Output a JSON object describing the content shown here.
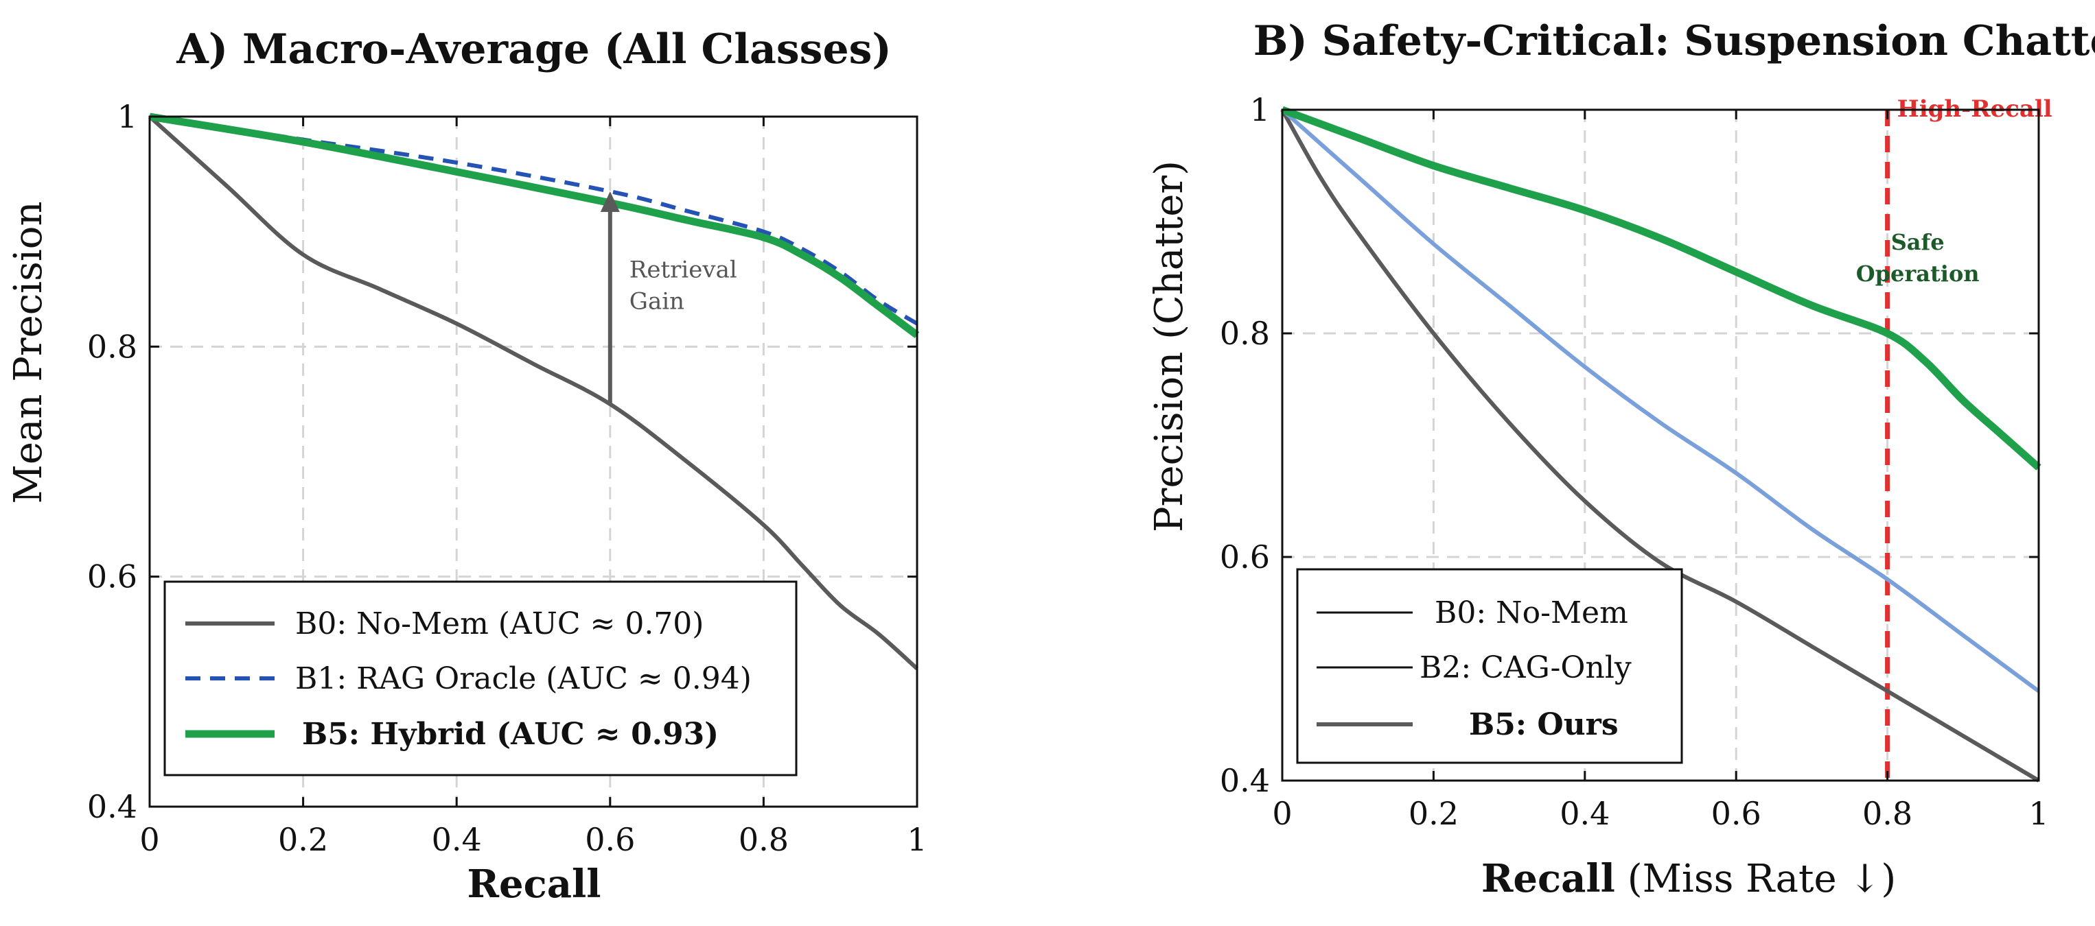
{
  "chart_data": [
    {
      "type": "line",
      "title": "A) Macro-Average (All Classes)",
      "xlabel": "Recall",
      "ylabel": "Mean Precision",
      "xlim": [
        0,
        1
      ],
      "ylim": [
        0.4,
        1
      ],
      "x_ticks": [
        "0",
        "0.2",
        "0.4",
        "0.6",
        "0.8",
        "1"
      ],
      "y_ticks": [
        "0.4",
        "0.6",
        "0.8",
        "1"
      ],
      "grid": true,
      "legend_position": "bottom-left",
      "series": [
        {
          "name": "B0: No-Mem (AUC ≈ 0.70)",
          "color": "#5a5a5a",
          "style": "solid",
          "x": [
            0,
            0.1,
            0.2,
            0.3,
            0.4,
            0.5,
            0.6,
            0.7,
            0.8,
            0.85,
            0.9,
            0.95,
            1.0
          ],
          "y": [
            1.0,
            0.94,
            0.88,
            0.85,
            0.82,
            0.785,
            0.75,
            0.7,
            0.645,
            0.61,
            0.575,
            0.55,
            0.52
          ]
        },
        {
          "name": "B1: RAG Oracle (AUC ≈ 0.94)",
          "color": "#2452b5",
          "style": "dashed",
          "x": [
            0,
            0.2,
            0.4,
            0.6,
            0.7,
            0.8,
            0.85,
            0.9,
            0.95,
            1.0
          ],
          "y": [
            1.0,
            0.98,
            0.96,
            0.935,
            0.918,
            0.9,
            0.885,
            0.865,
            0.84,
            0.82
          ]
        },
        {
          "name": "B5: Hybrid (AUC ≈ 0.93)",
          "color": "#1fa04a",
          "style": "solid-thick",
          "bold_label": true,
          "x": [
            0,
            0.2,
            0.4,
            0.6,
            0.7,
            0.8,
            0.85,
            0.9,
            0.95,
            1.0
          ],
          "y": [
            1.0,
            0.978,
            0.952,
            0.925,
            0.91,
            0.895,
            0.88,
            0.86,
            0.835,
            0.81
          ]
        }
      ],
      "annotations": [
        {
          "text_lines": [
            "Retrieval",
            "Gain"
          ],
          "arrow_x": 0.6,
          "arrow_from": 0.75,
          "arrow_to": 0.935
        }
      ]
    },
    {
      "type": "line",
      "title": "B) Safety-Critical: Suspension Chatter",
      "xlabel": "Recall",
      "xlabel_suffix": " (Miss Rate ↓)",
      "ylabel": "Precision (Chatter)",
      "xlim": [
        0,
        1
      ],
      "ylim": [
        0.4,
        1
      ],
      "x_ticks": [
        "0",
        "0.2",
        "0.4",
        "0.6",
        "0.8",
        "1"
      ],
      "y_ticks": [
        "0.4",
        "0.6",
        "0.8",
        "1"
      ],
      "grid": true,
      "legend_position": "bottom-left",
      "series": [
        {
          "name": "B0: No-Mem",
          "color": "#5a5a5a",
          "style": "solid",
          "legend_color": "#111111",
          "legend_style": "thin",
          "x": [
            0,
            0.05,
            0.1,
            0.2,
            0.3,
            0.4,
            0.5,
            0.6,
            0.7,
            0.8,
            0.9,
            1.0
          ],
          "y": [
            1.0,
            0.94,
            0.89,
            0.8,
            0.72,
            0.65,
            0.595,
            0.56,
            0.52,
            0.48,
            0.44,
            0.4
          ]
        },
        {
          "name": "B2: CAG-Only",
          "color": "#7aa0dc",
          "style": "solid",
          "legend_color": "#111111",
          "legend_style": "thin",
          "x": [
            0,
            0.1,
            0.2,
            0.3,
            0.4,
            0.5,
            0.6,
            0.7,
            0.8,
            0.9,
            1.0
          ],
          "y": [
            1.0,
            0.94,
            0.88,
            0.825,
            0.77,
            0.72,
            0.675,
            0.625,
            0.58,
            0.53,
            0.48
          ]
        },
        {
          "name": "B5: Ours",
          "color": "#1fa04a",
          "style": "solid-thick",
          "legend_color": "#5a5a5a",
          "legend_style": "medium",
          "bold_label": true,
          "x": [
            0,
            0.1,
            0.2,
            0.3,
            0.4,
            0.5,
            0.6,
            0.7,
            0.8,
            0.85,
            0.9,
            0.95,
            1.0
          ],
          "y": [
            1.0,
            0.975,
            0.95,
            0.93,
            0.91,
            0.885,
            0.855,
            0.825,
            0.8,
            0.775,
            0.74,
            0.71,
            0.68
          ]
        }
      ],
      "reference_line": {
        "x": 0.8,
        "label": "High-Recall",
        "color": "#e03030"
      },
      "annotations": [
        {
          "text_lines": [
            "Safe",
            "Operation"
          ],
          "x": 0.84,
          "y": 0.875,
          "color": "#1c5a2a"
        }
      ]
    }
  ]
}
